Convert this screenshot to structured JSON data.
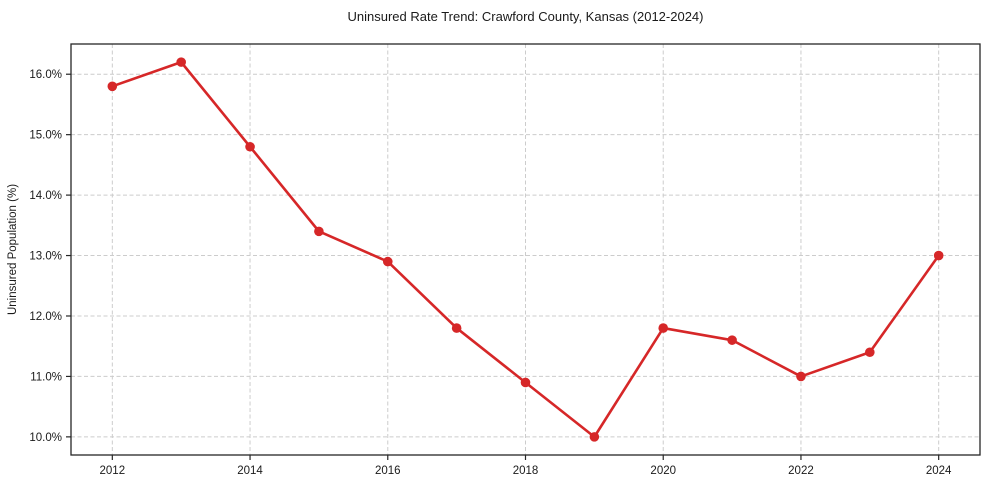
{
  "chart_data": {
    "type": "line",
    "title": "Uninsured Rate Trend: Crawford County, Kansas (2012-2024)",
    "xlabel": "",
    "ylabel": "Uninsured Population (%)",
    "x": [
      2012,
      2013,
      2014,
      2015,
      2016,
      2017,
      2018,
      2019,
      2020,
      2021,
      2022,
      2023,
      2024
    ],
    "values": [
      15.8,
      16.2,
      14.8,
      13.4,
      12.9,
      11.8,
      10.9,
      10.0,
      11.8,
      11.6,
      11.0,
      11.4,
      13.0
    ],
    "xticks": [
      2012,
      2014,
      2016,
      2018,
      2020,
      2022,
      2024
    ],
    "xtick_labels": [
      "2012",
      "2014",
      "2016",
      "2018",
      "2020",
      "2022",
      "2024"
    ],
    "yticks": [
      10,
      11,
      12,
      13,
      14,
      15,
      16
    ],
    "ytick_labels": [
      "10.0%",
      "11.0%",
      "12.0%",
      "13.0%",
      "14.0%",
      "15.0%",
      "16.0%"
    ],
    "xlim": [
      2011.4,
      2024.6
    ],
    "ylim": [
      9.7,
      16.5
    ],
    "grid": true,
    "legend_position": "none",
    "line_color": "#d62728",
    "marker": "circle",
    "grid_color": "#cccccc"
  }
}
